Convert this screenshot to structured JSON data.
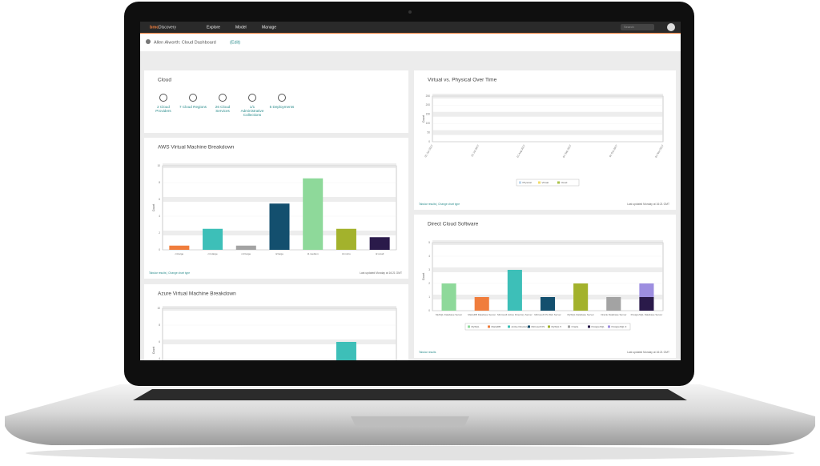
{
  "nav": {
    "brand": "bmc",
    "product": "Discovery",
    "menu": [
      "Explore",
      "Model",
      "Manage"
    ],
    "search": "Search"
  },
  "header": {
    "title": "Allen Alworth: Cloud Dashboard",
    "edit": "(Edit)"
  },
  "cloud_panel": {
    "title": "Cloud",
    "items": [
      "2 Cloud Providers",
      "7 Cloud Regions",
      "26 Cloud Services",
      "1/1 Administrative Collections",
      "5 Deployments"
    ]
  },
  "charts": [
    {
      "type": "bar",
      "title": "AWS Virtual Machine Breakdown",
      "y_label": "Count",
      "categories": [
        "c4.large",
        "c4.xlarge",
        "m3.large",
        "t2.large",
        "t2.medium",
        "t2.micro",
        "t2.small"
      ],
      "values": [
        0.5,
        2.5,
        0.5,
        5.5,
        8.5,
        2.5,
        1.5
      ],
      "colors": [
        "#f07d3c",
        "#3dbfb8",
        "#a3a3a3",
        "#134f6e",
        "#8ed99a",
        "#a3b22c",
        "#2a1a4a"
      ],
      "ylim": [
        0,
        10
      ],
      "yticks": [
        0,
        2,
        4,
        6,
        8,
        10
      ],
      "grid": true,
      "footer_left": "Tabular results | Change chart type",
      "footer_right": "Last updated Monday at 16:21 GMT"
    },
    {
      "type": "line",
      "title": "Virtual vs. Physical Over Time",
      "y_label": "Count",
      "categories": [
        "01 Jun 2017",
        "01 Jul 2017",
        "01 Aug 2017",
        "01 Sep 2017",
        "01 Oct 2017",
        "01 Nov 2017"
      ],
      "series": [
        {
          "name": "Physical",
          "color": "#bcd6ee",
          "values": [
            180,
            182,
            183,
            182,
            182,
            183
          ]
        },
        {
          "name": "Virtual",
          "color": "#f2dc6b",
          "values": [
            75,
            80,
            85,
            105,
            108,
            112
          ]
        },
        {
          "name": "Cloud",
          "color": "#a9c24a",
          "values": [
            8,
            8,
            9,
            9,
            10,
            22
          ]
        }
      ],
      "ylim": [
        0,
        250
      ],
      "yticks": [
        0,
        50,
        100,
        150,
        200,
        250
      ],
      "grid": true,
      "legend": "bottom",
      "footer_left": "Tabular results | Change chart type",
      "footer_right": "Last updated Monday at 16:21 GMT"
    },
    {
      "type": "stacked_bar",
      "title": "Direct Cloud Software",
      "y_label": "Count",
      "categories": [
        "MySQL Database Server",
        "MariaDB Database Server",
        "Microsoft Active Directory Server",
        "Microsoft IIS Web Server",
        "MySQL Database Server",
        "Oracle Database Server",
        "PostgreSQL Database Server"
      ],
      "series": [
        {
          "name": "MySQL",
          "color": "#8ed99a",
          "values": [
            2,
            null,
            null,
            null,
            null,
            null,
            null
          ]
        },
        {
          "name": "MariaDB",
          "color": "#f07d3c",
          "values": [
            null,
            1,
            null,
            null,
            null,
            null,
            null
          ]
        },
        {
          "name": "Active Directory",
          "color": "#3dbfb8",
          "values": [
            null,
            null,
            3,
            null,
            null,
            null,
            null
          ]
        },
        {
          "name": "Microsoft IIS",
          "color": "#134f6e",
          "values": [
            null,
            null,
            null,
            1,
            null,
            null,
            null
          ]
        },
        {
          "name": "MySQL 5",
          "color": "#a3b22c",
          "values": [
            null,
            null,
            null,
            null,
            2,
            null,
            null
          ]
        },
        {
          "name": "Oracle",
          "color": "#a3a3a3",
          "values": [
            null,
            null,
            null,
            null,
            null,
            1,
            null
          ]
        },
        {
          "name": "PostgreSQL",
          "color": "#2a1a4a",
          "values": [
            null,
            null,
            null,
            null,
            null,
            null,
            1
          ]
        },
        {
          "name": "PostgreSQL 9",
          "color": "#9d8ee0",
          "values": [
            null,
            null,
            null,
            null,
            null,
            null,
            1
          ]
        }
      ],
      "ylim": [
        0,
        5
      ],
      "yticks": [
        0,
        1,
        2,
        3,
        4,
        5
      ],
      "grid": true,
      "legend": "bottom",
      "footer_left": "Tabular results",
      "footer_right": "Last updated Monday at 16:21 GMT"
    },
    {
      "type": "bar",
      "title": "Azure Virtual Machine Breakdown",
      "y_label": "Count",
      "categories": [
        null,
        null,
        null,
        null,
        null,
        null,
        null
      ],
      "values": [
        null,
        null,
        null,
        null,
        null,
        6,
        null
      ],
      "colors": [
        "#3dbfb8",
        "#3dbfb8",
        "#3dbfb8",
        "#3dbfb8",
        "#3dbfb8",
        "#3dbfb8",
        "#3dbfb8"
      ],
      "ylim": [
        0,
        10
      ],
      "yticks": [
        0,
        2,
        4,
        6,
        8,
        10
      ],
      "grid": true
    }
  ]
}
